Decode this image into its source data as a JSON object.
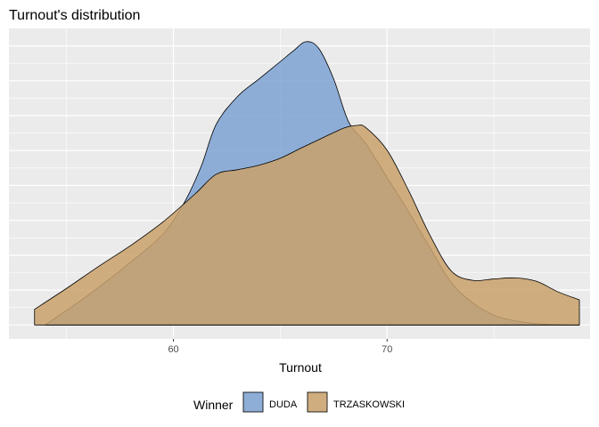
{
  "chart_data": {
    "type": "area",
    "title": "Turnout's distribution",
    "xlabel": "Turnout",
    "ylabel": "",
    "xlim": [
      52.3,
      79.5
    ],
    "ylim": [
      -0.004,
      0.085
    ],
    "x_ticks": [
      60,
      70
    ],
    "x_tick_labels": [
      "60",
      "70"
    ],
    "grid": true,
    "legend_position": "bottom",
    "legend_title": "Winner",
    "series": [
      {
        "name": "DUDA",
        "color": "#7da2d2",
        "x": [
          54.0,
          56.0,
          58.0,
          59.5,
          60.5,
          61.3,
          62.0,
          63.0,
          64.0,
          65.0,
          65.6,
          66.2,
          66.8,
          67.5,
          68.2,
          69.0,
          70.0,
          71.0,
          72.0,
          73.0,
          74.0,
          75.0,
          76.0,
          77.0,
          78.0,
          79.0
        ],
        "y": [
          0.0,
          0.0085,
          0.018,
          0.026,
          0.035,
          0.0455,
          0.0575,
          0.0655,
          0.0705,
          0.0755,
          0.0785,
          0.0812,
          0.0793,
          0.0705,
          0.0582,
          0.052,
          0.0423,
          0.0325,
          0.0222,
          0.0122,
          0.0064,
          0.0028,
          0.0012,
          0.0004,
          0.0001,
          0.0
        ]
      },
      {
        "name": "TRZASKOWSKI",
        "color": "#c9a16b",
        "x": [
          53.5,
          55.0,
          56.5,
          58.0,
          59.5,
          61.0,
          62.0,
          63.0,
          64.0,
          65.0,
          66.0,
          67.0,
          68.0,
          68.6,
          69.0,
          70.0,
          71.0,
          72.0,
          73.0,
          74.0,
          75.0,
          76.0,
          77.0,
          78.0,
          79.0
        ],
        "y": [
          0.0045,
          0.0105,
          0.0168,
          0.0228,
          0.0295,
          0.0375,
          0.0432,
          0.0445,
          0.0458,
          0.0478,
          0.0508,
          0.0537,
          0.0565,
          0.0572,
          0.0566,
          0.0501,
          0.0386,
          0.0258,
          0.0155,
          0.0128,
          0.0132,
          0.0135,
          0.0125,
          0.0095,
          0.0072
        ]
      }
    ]
  }
}
